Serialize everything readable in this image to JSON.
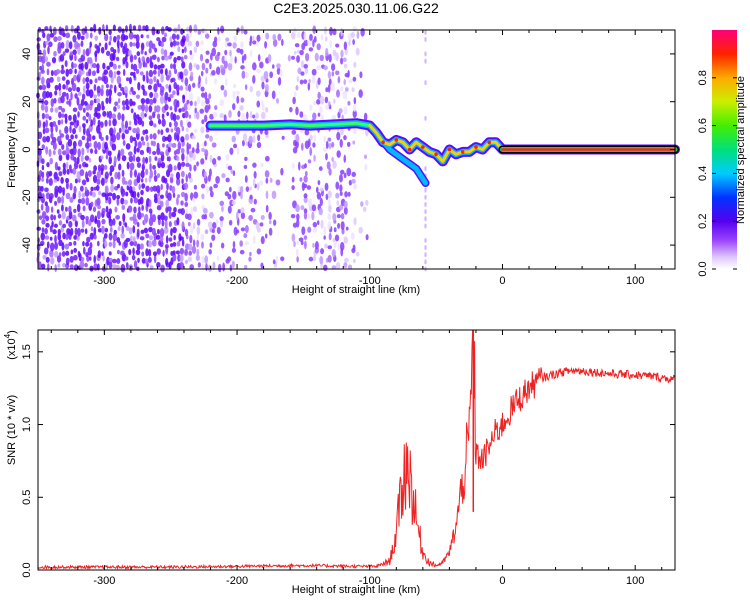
{
  "title": "C2E3.2025.030.11.06.G22",
  "chart_data": [
    {
      "type": "heatmap",
      "xlabel": "Height of straight line (km)",
      "ylabel": "Frequency (Hz)",
      "xlim": [
        -350,
        130
      ],
      "ylim": [
        -50,
        50
      ],
      "x_ticks": [
        -300,
        -200,
        -100,
        0,
        100
      ],
      "y_ticks": [
        -40,
        -20,
        0,
        20,
        40
      ],
      "colorbar": {
        "label": "Normalized spectral amplitude",
        "range": [
          0,
          1
        ],
        "ticks": [
          0.0,
          0.2,
          0.4,
          0.6,
          0.8
        ],
        "colormap": "rainbow (white-violet-blue-cyan-green-yellow-orange-red-magenta)"
      },
      "ridge": [
        {
          "x": -220,
          "y": 10
        },
        {
          "x": -200,
          "y": 10
        },
        {
          "x": -180,
          "y": 10
        },
        {
          "x": -160,
          "y": 10.5
        },
        {
          "x": -145,
          "y": 10
        },
        {
          "x": -110,
          "y": 11
        },
        {
          "x": -100,
          "y": 10
        },
        {
          "x": -95,
          "y": 7
        },
        {
          "x": -90,
          "y": 3
        },
        {
          "x": -85,
          "y": 2
        },
        {
          "x": -80,
          "y": 4
        },
        {
          "x": -75,
          "y": 3
        },
        {
          "x": -70,
          "y": 0
        },
        {
          "x": -65,
          "y": 3
        },
        {
          "x": -60,
          "y": 1
        },
        {
          "x": -55,
          "y": -1
        },
        {
          "x": -50,
          "y": -2
        },
        {
          "x": -45,
          "y": -5
        },
        {
          "x": -40,
          "y": 0
        },
        {
          "x": -35,
          "y": -2
        },
        {
          "x": -30,
          "y": -1
        },
        {
          "x": -25,
          "y": -1
        },
        {
          "x": -20,
          "y": 1
        },
        {
          "x": -15,
          "y": 0
        },
        {
          "x": -10,
          "y": 3
        },
        {
          "x": -5,
          "y": 3
        },
        {
          "x": 0,
          "y": 0
        },
        {
          "x": 130,
          "y": 0
        }
      ],
      "branch": [
        {
          "x": -95,
          "y": 7
        },
        {
          "x": -85,
          "y": 0
        },
        {
          "x": -75,
          "y": -4
        },
        {
          "x": -65,
          "y": -8
        },
        {
          "x": -58,
          "y": -14
        }
      ]
    },
    {
      "type": "line",
      "xlabel": "Height of straight line (km)",
      "ylabel": "SNR (10 * v/v)",
      "yscale_label": "(x10",
      "yscale_exp": "4",
      "xlim": [
        -350,
        130
      ],
      "ylim": [
        0,
        1.65
      ],
      "x_ticks": [
        -300,
        -200,
        -100,
        0,
        100
      ],
      "y_ticks": [
        0.0,
        0.5,
        1.0,
        1.5
      ],
      "y_unit_multiplier": 10000,
      "series": [
        {
          "color": "#ee2222",
          "points": [
            {
              "x": -350,
              "y": 0.02
            },
            {
              "x": -300,
              "y": 0.02
            },
            {
              "x": -250,
              "y": 0.02
            },
            {
              "x": -200,
              "y": 0.025
            },
            {
              "x": -160,
              "y": 0.03
            },
            {
              "x": -140,
              "y": 0.03
            },
            {
              "x": -110,
              "y": 0.025
            },
            {
              "x": -95,
              "y": 0.025
            },
            {
              "x": -85,
              "y": 0.06
            },
            {
              "x": -80,
              "y": 0.25
            },
            {
              "x": -76,
              "y": 0.55
            },
            {
              "x": -72,
              "y": 0.75
            },
            {
              "x": -68,
              "y": 0.55
            },
            {
              "x": -65,
              "y": 0.35
            },
            {
              "x": -60,
              "y": 0.12
            },
            {
              "x": -55,
              "y": 0.05
            },
            {
              "x": -50,
              "y": 0.03
            },
            {
              "x": -45,
              "y": 0.05
            },
            {
              "x": -40,
              "y": 0.12
            },
            {
              "x": -35,
              "y": 0.3
            },
            {
              "x": -30,
              "y": 0.6
            },
            {
              "x": -25,
              "y": 0.9
            },
            {
              "x": -22,
              "y": 1.65
            },
            {
              "x": -20,
              "y": 0.8
            },
            {
              "x": -15,
              "y": 0.75
            },
            {
              "x": -10,
              "y": 0.85
            },
            {
              "x": -5,
              "y": 0.95
            },
            {
              "x": 0,
              "y": 1.0
            },
            {
              "x": 10,
              "y": 1.15
            },
            {
              "x": 20,
              "y": 1.25
            },
            {
              "x": 30,
              "y": 1.32
            },
            {
              "x": 40,
              "y": 1.35
            },
            {
              "x": 50,
              "y": 1.37
            },
            {
              "x": 60,
              "y": 1.37
            },
            {
              "x": 80,
              "y": 1.35
            },
            {
              "x": 100,
              "y": 1.34
            },
            {
              "x": 115,
              "y": 1.33
            },
            {
              "x": 130,
              "y": 1.31
            }
          ]
        }
      ]
    }
  ]
}
